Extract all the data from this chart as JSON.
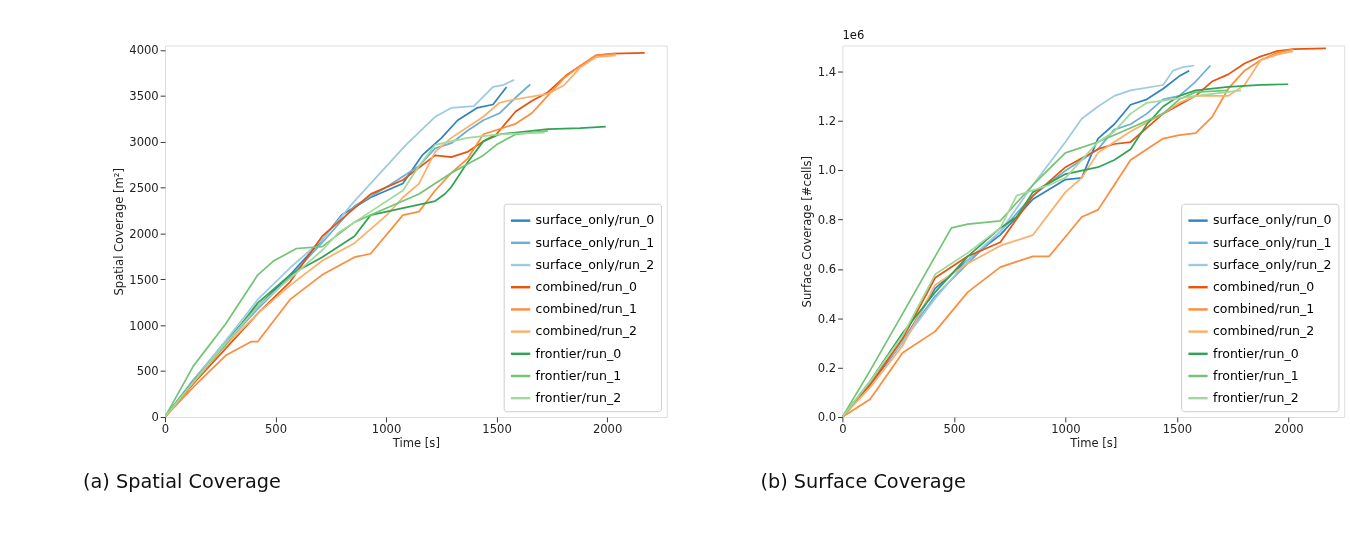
{
  "chart_data": [
    {
      "type": "line",
      "xlabel": "Time [s]",
      "ylabel": "Spatial Coverage [m²]",
      "xlim": [
        0,
        2270
      ],
      "ylim": [
        0,
        4050
      ],
      "xticks": [
        0,
        500,
        1000,
        1500,
        2000
      ],
      "yticks": [
        0,
        500,
        1000,
        1500,
        2000,
        2500,
        3000,
        3500,
        4000
      ],
      "grid": false,
      "legend": "bottom right",
      "annotations": [
        "(a) Spatial Coverage"
      ],
      "series": [
        {
          "name": "surface_only/run_0",
          "color": "#3182bd",
          "x": [
            0,
            128,
            274,
            420,
            566,
            711,
            799,
            930,
            1076,
            1163,
            1251,
            1324,
            1411,
            1484,
            1545
          ],
          "values": [
            0,
            402,
            823,
            1206,
            1550,
            1933,
            2201,
            2393,
            2545,
            2852,
            3043,
            3235,
            3369,
            3407,
            3598
          ]
        },
        {
          "name": "surface_only/run_1",
          "color": "#6baed6",
          "x": [
            0,
            128,
            274,
            420,
            566,
            711,
            857,
            1003,
            1149,
            1222,
            1295,
            1368,
            1440,
            1513,
            1586,
            1652
          ],
          "values": [
            0,
            390,
            800,
            1180,
            1530,
            1900,
            2300,
            2507,
            2737,
            2928,
            2985,
            3120,
            3235,
            3311,
            3483,
            3625
          ]
        },
        {
          "name": "surface_only/run_2",
          "color": "#9ecae1",
          "x": [
            0,
            128,
            274,
            420,
            566,
            711,
            857,
            1003,
            1090,
            1222,
            1295,
            1397,
            1484,
            1528,
            1579
          ],
          "values": [
            0,
            400,
            830,
            1282,
            1627,
            1933,
            2354,
            2737,
            2967,
            3273,
            3369,
            3388,
            3598,
            3617,
            3675
          ]
        },
        {
          "name": "combined/run_0",
          "color": "#e6550d",
          "x": [
            0,
            128,
            274,
            420,
            566,
            711,
            930,
            1076,
            1222,
            1295,
            1368,
            1440,
            1499,
            1586,
            1659,
            1732,
            1819,
            1878,
            1951,
            2024,
            2170
          ],
          "values": [
            0,
            364,
            746,
            1129,
            1474,
            1971,
            2430,
            2584,
            2852,
            2833,
            2890,
            3005,
            3082,
            3330,
            3445,
            3541,
            3732,
            3828,
            3943,
            3962,
            3970
          ]
        },
        {
          "name": "combined/run_1",
          "color": "#fd8d3c",
          "x": [
            0,
            128,
            274,
            391,
            420,
            566,
            711,
            857,
            930,
            1076,
            1149,
            1222,
            1295,
            1368,
            1440,
            1586,
            1659,
            1732,
            1805,
            1878,
            1951,
            2039
          ],
          "values": [
            0,
            325,
            670,
            823,
            823,
            1282,
            1550,
            1742,
            1780,
            2201,
            2239,
            2469,
            2660,
            2813,
            3082,
            3196,
            3311,
            3503,
            3694,
            3828,
            3943,
            3962
          ]
        },
        {
          "name": "combined/run_2",
          "color": "#fdae6b",
          "x": [
            0,
            128,
            274,
            420,
            566,
            711,
            857,
            1003,
            1076,
            1149,
            1222,
            1295,
            1440,
            1513,
            1586,
            1732,
            1805,
            1878,
            1951,
            2039
          ],
          "values": [
            0,
            380,
            780,
            1129,
            1435,
            1704,
            1895,
            2201,
            2393,
            2545,
            2890,
            3043,
            3273,
            3426,
            3464,
            3522,
            3617,
            3809,
            3924,
            3943
          ]
        },
        {
          "name": "frontier/run_0",
          "color": "#31a354",
          "x": [
            0,
            128,
            274,
            420,
            566,
            711,
            857,
            930,
            1003,
            1149,
            1222,
            1266,
            1295,
            1368,
            1440,
            1513,
            1586,
            1732,
            1878,
            1994
          ],
          "values": [
            0,
            390,
            790,
            1244,
            1550,
            1742,
            1971,
            2201,
            2239,
            2316,
            2354,
            2431,
            2507,
            2775,
            3005,
            3082,
            3100,
            3139,
            3150,
            3165
          ]
        },
        {
          "name": "frontier/run_1",
          "color": "#74c476",
          "x": [
            0,
            128,
            274,
            420,
            493,
            595,
            711,
            857,
            1003,
            1149,
            1295,
            1440,
            1499,
            1586,
            1732
          ],
          "values": [
            0,
            555,
            1014,
            1550,
            1704,
            1837,
            1857,
            2125,
            2278,
            2431,
            2660,
            2852,
            2967,
            3082,
            3120
          ]
        },
        {
          "name": "frontier/run_2",
          "color": "#a1d99b",
          "x": [
            0,
            128,
            274,
            420,
            566,
            711,
            785,
            930,
            1076,
            1149,
            1222,
            1368,
            1513,
            1717
          ],
          "values": [
            0,
            380,
            800,
            1206,
            1512,
            1818,
            2010,
            2239,
            2469,
            2737,
            2967,
            3043,
            3082,
            3100
          ]
        }
      ]
    },
    {
      "type": "line",
      "xlabel": "Time [s]",
      "ylabel": "Surface Coverage [#cells]",
      "xlim": [
        0,
        2250
      ],
      "ylim": [
        0,
        1.505
      ],
      "xticks": [
        0,
        500,
        1000,
        1500,
        2000
      ],
      "yticks": [
        {
          "value": 0,
          "label": "0.0"
        },
        0.2,
        0.4,
        0.6,
        0.8,
        {
          "value": 1,
          "label": "1.0"
        },
        1.2,
        1.4
      ],
      "grid": false,
      "legend": "bottom right",
      "annotations": [
        "1e6",
        "(b) Surface Coverage"
      ],
      "series": [
        {
          "name": "surface_only/run_0",
          "color": "#3182bd",
          "x": [
            0,
            124,
            270,
            416,
            562,
            708,
            854,
            1000,
            1073,
            1146,
            1219,
            1292,
            1365,
            1438,
            1511,
            1555
          ],
          "values": [
            0,
            0.13,
            0.304,
            0.521,
            0.636,
            0.738,
            0.882,
            0.962,
            0.969,
            1.128,
            1.186,
            1.265,
            1.287,
            1.33,
            1.381,
            1.403
          ]
        },
        {
          "name": "surface_only/run_1",
          "color": "#6baed6",
          "x": [
            0,
            124,
            270,
            416,
            562,
            708,
            854,
            1000,
            1146,
            1219,
            1292,
            1365,
            1438,
            1511,
            1584,
            1650
          ],
          "values": [
            0,
            0.14,
            0.31,
            0.49,
            0.622,
            0.752,
            0.897,
            0.998,
            1.085,
            1.164,
            1.186,
            1.229,
            1.287,
            1.301,
            1.359,
            1.424
          ]
        },
        {
          "name": "surface_only/run_2",
          "color": "#9ecae1",
          "x": [
            0,
            124,
            270,
            416,
            562,
            708,
            854,
            927,
            1000,
            1073,
            1146,
            1219,
            1292,
            1438,
            1482,
            1526,
            1577
          ],
          "values": [
            0,
            0.14,
            0.304,
            0.48,
            0.636,
            0.752,
            0.94,
            1.027,
            1.114,
            1.208,
            1.258,
            1.301,
            1.323,
            1.345,
            1.403,
            1.417,
            1.424
          ]
        },
        {
          "name": "combined/run_0",
          "color": "#e6550d",
          "x": [
            0,
            124,
            270,
            416,
            562,
            708,
            854,
            1000,
            1146,
            1219,
            1292,
            1365,
            1438,
            1511,
            1584,
            1657,
            1730,
            1803,
            1876,
            1949,
            2022,
            2168
          ],
          "values": [
            0,
            0.13,
            0.318,
            0.564,
            0.651,
            0.708,
            0.896,
            1.012,
            1.085,
            1.106,
            1.114,
            1.171,
            1.229,
            1.265,
            1.301,
            1.359,
            1.388,
            1.432,
            1.461,
            1.482,
            1.49,
            1.493
          ]
        },
        {
          "name": "combined/run_1",
          "color": "#fd8d3c",
          "x": [
            0,
            124,
            270,
            416,
            562,
            708,
            854,
            927,
            1000,
            1073,
            1146,
            1219,
            1292,
            1365,
            1438,
            1511,
            1584,
            1657,
            1730,
            1803,
            1876,
            1949,
            2022
          ],
          "values": [
            0,
            0.072,
            0.26,
            0.347,
            0.506,
            0.607,
            0.651,
            0.651,
            0.73,
            0.81,
            0.839,
            0.94,
            1.041,
            1.085,
            1.128,
            1.142,
            1.15,
            1.215,
            1.33,
            1.403,
            1.446,
            1.475,
            1.49
          ]
        },
        {
          "name": "combined/run_2",
          "color": "#fdae6b",
          "x": [
            0,
            124,
            270,
            416,
            562,
            708,
            854,
            1000,
            1073,
            1146,
            1219,
            1292,
            1438,
            1511,
            1584,
            1730,
            1803,
            1876,
            1949,
            2022
          ],
          "values": [
            0,
            0.12,
            0.289,
            0.535,
            0.622,
            0.694,
            0.737,
            0.911,
            0.969,
            1.07,
            1.114,
            1.157,
            1.229,
            1.273,
            1.301,
            1.301,
            1.345,
            1.446,
            1.468,
            1.482
          ]
        },
        {
          "name": "frontier/run_0",
          "color": "#31a354",
          "x": [
            0,
            124,
            270,
            416,
            562,
            708,
            781,
            854,
            1000,
            1146,
            1219,
            1292,
            1365,
            1438,
            1511,
            1584,
            1730,
            1876,
            1999
          ],
          "values": [
            0,
            0.145,
            0.34,
            0.506,
            0.651,
            0.766,
            0.81,
            0.911,
            0.984,
            1.012,
            1.041,
            1.085,
            1.186,
            1.258,
            1.301,
            1.323,
            1.337,
            1.345,
            1.348
          ]
        },
        {
          "name": "frontier/run_1",
          "color": "#74c476",
          "x": [
            0,
            124,
            270,
            416,
            489,
            562,
            708,
            854,
            1000,
            1146,
            1292,
            1438,
            1511,
            1584,
            1730
          ],
          "values": [
            0,
            0.188,
            0.419,
            0.651,
            0.766,
            0.781,
            0.795,
            0.94,
            1.07,
            1.114,
            1.171,
            1.229,
            1.287,
            1.316,
            1.323
          ]
        },
        {
          "name": "frontier/run_2",
          "color": "#a1d99b",
          "x": [
            0,
            124,
            270,
            416,
            562,
            708,
            781,
            927,
            1000,
            1146,
            1219,
            1292,
            1365,
            1584,
            1788
          ],
          "values": [
            0,
            0.145,
            0.33,
            0.578,
            0.665,
            0.766,
            0.897,
            0.94,
            0.969,
            1.114,
            1.157,
            1.229,
            1.273,
            1.301,
            1.323
          ]
        }
      ]
    }
  ]
}
